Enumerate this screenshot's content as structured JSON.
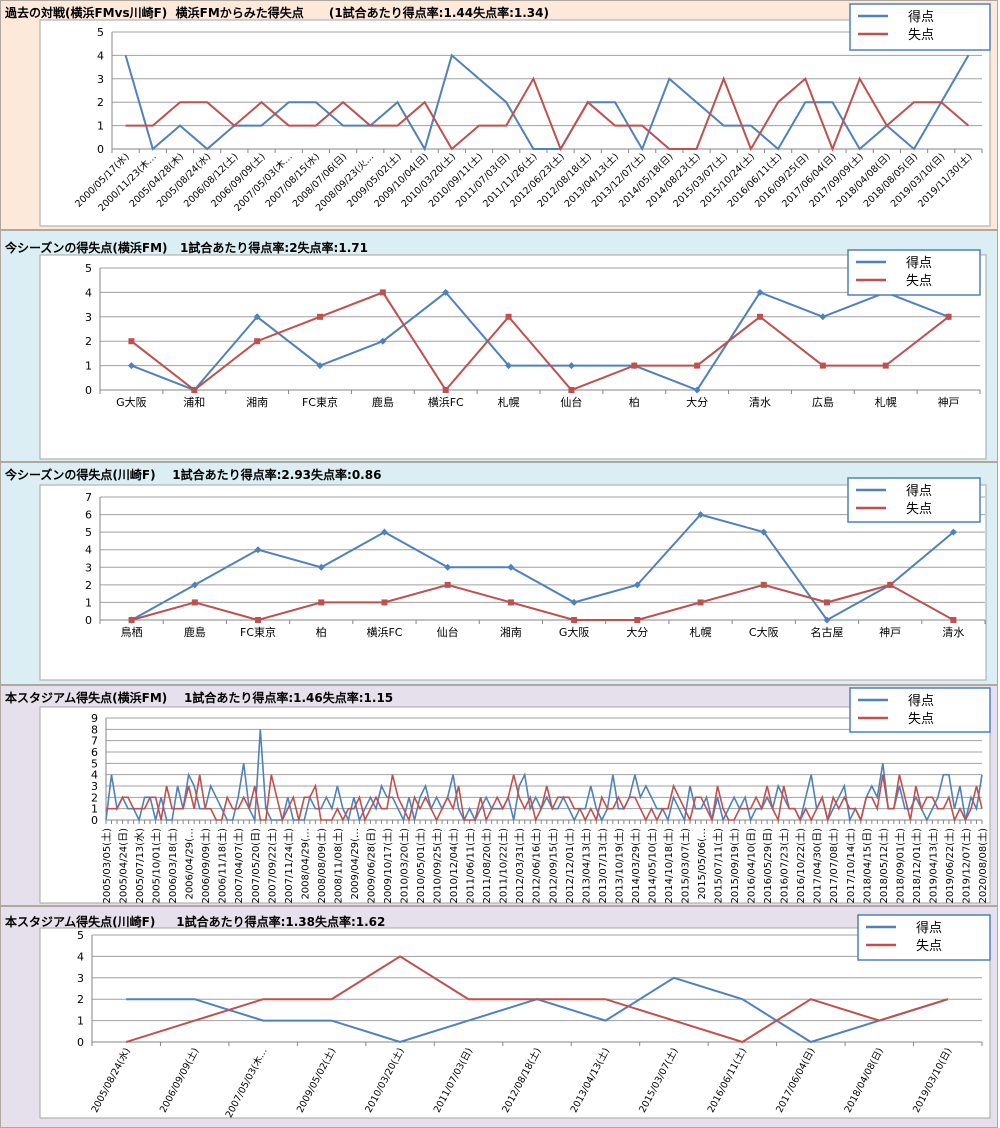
{
  "legend": {
    "scored": "得点",
    "conceded": "失点"
  },
  "colors": {
    "scored": "#4f81bd",
    "conceded": "#c0504d"
  },
  "chart_data": [
    {
      "type": "line",
      "title": "過去の対戦(横浜FMvs川崎F)  横浜FMからみた得失点      (1試合あたり得点率:1.44失点率:1.34)",
      "ylim": [
        0,
        5
      ],
      "yticks": [
        0,
        1,
        2,
        3,
        4,
        5
      ],
      "grid": true,
      "legend_position": "top-right",
      "categories": [
        "2000/05/17(水)",
        "2000/11/23(木…",
        "2005/04/28(木)",
        "2005/08/24(水)",
        "2006/08/12(土)",
        "2006/09/09(土)",
        "2007/05/03(木…",
        "2007/08/15(水)",
        "2008/07/06(日)",
        "2008/09/23(火…",
        "2009/05/02(土)",
        "2009/10/04(日)",
        "2010/03/20(土)",
        "2010/09/11(土)",
        "2011/07/03(日)",
        "2011/11/26(土)",
        "2012/06/23(土)",
        "2012/08/18(土)",
        "2013/04/13(土)",
        "2013/12/07(土)",
        "2014/05/18(日)",
        "2014/08/23(土)",
        "2015/03/07(土)",
        "2015/10/24(土)",
        "2016/06/11(土)",
        "2016/09/25(日)",
        "2017/06/04(日)",
        "2017/09/09(土)",
        "2018/04/08(日)",
        "2018/08/05(日)",
        "2019/03/10(日)",
        "2019/11/30(土)"
      ],
      "series": [
        {
          "name": "得点",
          "values": [
            4,
            0,
            1,
            0,
            1,
            1,
            2,
            2,
            1,
            1,
            2,
            0,
            4,
            3,
            2,
            0,
            0,
            2,
            2,
            0,
            3,
            2,
            1,
            1,
            0,
            2,
            2,
            0,
            1,
            0,
            2,
            4
          ]
        },
        {
          "name": "失点",
          "values": [
            1,
            1,
            2,
            2,
            1,
            2,
            1,
            1,
            2,
            1,
            1,
            2,
            0,
            1,
            1,
            3,
            0,
            2,
            1,
            1,
            0,
            0,
            3,
            0,
            2,
            3,
            0,
            3,
            1,
            2,
            2,
            1
          ]
        }
      ]
    },
    {
      "type": "line",
      "title": "今シーズンの得失点(横浜FM)   1試合あたり得点率:2失点率:1.71",
      "ylim": [
        0,
        5
      ],
      "yticks": [
        0,
        1,
        2,
        3,
        4,
        5
      ],
      "grid": true,
      "legend_position": "top-right",
      "categories": [
        "G大阪",
        "浦和",
        "湘南",
        "FC東京",
        "鹿島",
        "横浜FC",
        "札幌",
        "仙台",
        "柏",
        "大分",
        "清水",
        "広島",
        "札幌",
        "神戸"
      ],
      "series": [
        {
          "name": "得点",
          "values": [
            1,
            0,
            3,
            1,
            2,
            4,
            1,
            1,
            1,
            0,
            4,
            3,
            4,
            3
          ]
        },
        {
          "name": "失点",
          "values": [
            2,
            0,
            2,
            3,
            4,
            0,
            3,
            0,
            1,
            1,
            3,
            1,
            1,
            3
          ]
        }
      ]
    },
    {
      "type": "line",
      "title": "今シーズンの得失点(川崎F)    1試合あたり得点率:2.93失点率:0.86",
      "ylim": [
        0,
        7
      ],
      "yticks": [
        0,
        1,
        2,
        3,
        4,
        5,
        6,
        7
      ],
      "grid": true,
      "legend_position": "top-right",
      "categories": [
        "鳥栖",
        "鹿島",
        "FC東京",
        "柏",
        "横浜FC",
        "仙台",
        "湘南",
        "G大阪",
        "大分",
        "札幌",
        "C大阪",
        "名古屋",
        "神戸",
        "清水"
      ],
      "series": [
        {
          "name": "得点",
          "values": [
            0,
            2,
            4,
            3,
            5,
            3,
            3,
            1,
            2,
            6,
            5,
            0,
            2,
            5
          ]
        },
        {
          "name": "失点",
          "values": [
            0,
            1,
            0,
            1,
            1,
            2,
            1,
            0,
            0,
            1,
            2,
            1,
            2,
            0
          ]
        }
      ]
    },
    {
      "type": "line",
      "title": "本スタジアム得失点(横浜FM)    1試合あたり得点率:1.46失点率:1.15",
      "ylim": [
        0,
        9
      ],
      "yticks": [
        0,
        1,
        2,
        3,
        4,
        5,
        6,
        7,
        8,
        9
      ],
      "grid": true,
      "legend_position": "top-right",
      "tick_labels": [
        "2005/03/05(土)",
        "2005/04/24(日)",
        "2005/07/13(水)",
        "2005/10/01(土)",
        "2006/03/18(土)",
        "2006/04/29(…",
        "2006/09/09(土)",
        "2006/11/18(土)",
        "2007/04/07(土)",
        "2007/05/20(日)",
        "2007/09/22(土)",
        "2007/11/24(土)",
        "2008/04/29(…",
        "2008/08/09(土)",
        "2008/11/08(土)",
        "2009/04/29(…",
        "2009/06/28(日)",
        "2009/10/17(土)",
        "2010/03/20(土)",
        "2010/05/01(土)",
        "2010/09/25(土)",
        "2010/12/04(土)",
        "2011/06/11(土)",
        "2011/08/20(土)",
        "2011/10/22(土)",
        "2012/03/31(土)",
        "2012/06/16(土)",
        "2012/09/15(土)",
        "2012/12/01(土)",
        "2013/04/13(土)",
        "2013/07/13(土)",
        "2013/10/19(土)",
        "2014/03/29(土)",
        "2014/05/10(土)",
        "2014/10/18(土)",
        "2015/03/07(土)",
        "2015/05/06(…",
        "2015/07/11(土)",
        "2015/09/19(土)",
        "2016/04/10(日)",
        "2016/05/29(日)",
        "2016/07/23(土)",
        "2016/10/22(土)",
        "2017/04/30(日)",
        "2017/07/08(土)",
        "2017/10/14(土)",
        "2018/04/15(日)",
        "2018/05/12(土)",
        "2018/09/01(土)",
        "2018/12/01(土)",
        "2019/04/13(土)",
        "2019/06/22(土)",
        "2019/12/07(土)",
        "2020/08/08(土)"
      ],
      "series": [
        {
          "name": "得点",
          "values": [
            0,
            4,
            1,
            2,
            1,
            1,
            0,
            2,
            2,
            0,
            2,
            0,
            0,
            3,
            1,
            4,
            3,
            1,
            1,
            3,
            2,
            1,
            0,
            0,
            2,
            5,
            1,
            0,
            8,
            1,
            0,
            0,
            0,
            2,
            0,
            0,
            0,
            2,
            1,
            1,
            2,
            1,
            3,
            1,
            0,
            2,
            0,
            1,
            2,
            1,
            3,
            2,
            2,
            1,
            0,
            2,
            0,
            2,
            3,
            1,
            2,
            1,
            2,
            4,
            1,
            0,
            1,
            0,
            1,
            2,
            1,
            1,
            1,
            2,
            0,
            3,
            4,
            1,
            2,
            1,
            2,
            1,
            1,
            2,
            1,
            0,
            1,
            1,
            3,
            1,
            0,
            1,
            4,
            1,
            1,
            2,
            4,
            2,
            3,
            2,
            1,
            1,
            0,
            2,
            1,
            0,
            3,
            1,
            1,
            2,
            0,
            2,
            0,
            1,
            2,
            1,
            2,
            0,
            1,
            1,
            2,
            1,
            3,
            2,
            1,
            1,
            0,
            2,
            4,
            1,
            2,
            0,
            1,
            2,
            3,
            0,
            1,
            0,
            2,
            3,
            2,
            5,
            1,
            1,
            3,
            1,
            1,
            2,
            1,
            0,
            1,
            2,
            4,
            4,
            1,
            3,
            0,
            2,
            1,
            4
          ]
        },
        {
          "name": "失点",
          "values": [
            1,
            1,
            1,
            2,
            2,
            1,
            1,
            1,
            2,
            2,
            0,
            3,
            1,
            1,
            1,
            3,
            1,
            4,
            1,
            1,
            0,
            0,
            2,
            1,
            1,
            2,
            1,
            3,
            0,
            0,
            4,
            2,
            0,
            1,
            2,
            0,
            2,
            2,
            3,
            0,
            0,
            0,
            1,
            0,
            1,
            1,
            2,
            0,
            1,
            2,
            1,
            1,
            4,
            2,
            1,
            0,
            2,
            1,
            2,
            1,
            0,
            1,
            2,
            1,
            3,
            0,
            0,
            0,
            2,
            0,
            1,
            2,
            1,
            2,
            4,
            2,
            1,
            2,
            0,
            1,
            3,
            1,
            2,
            2,
            2,
            1,
            1,
            0,
            1,
            0,
            2,
            1,
            1,
            2,
            1,
            2,
            2,
            1,
            0,
            1,
            0,
            1,
            1,
            3,
            2,
            1,
            0,
            2,
            2,
            1,
            0,
            3,
            1,
            0,
            0,
            1,
            1,
            1,
            2,
            1,
            3,
            1,
            0,
            3,
            1,
            1,
            0,
            1,
            0,
            1,
            2,
            0,
            2,
            1,
            2,
            1,
            1,
            0,
            2,
            2,
            1,
            4,
            1,
            1,
            4,
            2,
            0,
            3,
            1,
            2,
            2,
            1,
            1,
            2,
            0,
            1,
            0,
            1,
            3,
            1
          ]
        }
      ]
    },
    {
      "type": "line",
      "title": "本スタジアム得失点(川崎F)     1試合あたり得点率:1.38失点率:1.62",
      "ylim": [
        0,
        5
      ],
      "yticks": [
        0,
        1,
        2,
        3,
        4,
        5
      ],
      "grid": true,
      "legend_position": "top-right",
      "categories": [
        "2005/08/24(水)",
        "2006/09/09(土)",
        "2007/05/03(木…",
        "2009/05/02(土)",
        "2010/03/20(土)",
        "2011/07/03(日)",
        "2012/08/18(土)",
        "2013/04/13(土)",
        "2015/03/07(土)",
        "2016/06/11(土)",
        "2017/06/04(日)",
        "2018/04/08(日)",
        "2019/03/10(日)"
      ],
      "series": [
        {
          "name": "得点",
          "values": [
            2,
            2,
            1,
            1,
            0,
            1,
            2,
            1,
            3,
            2,
            0,
            1,
            2
          ]
        },
        {
          "name": "失点",
          "values": [
            0,
            1,
            2,
            2,
            4,
            2,
            2,
            2,
            1,
            0,
            2,
            1,
            2
          ]
        }
      ]
    }
  ]
}
